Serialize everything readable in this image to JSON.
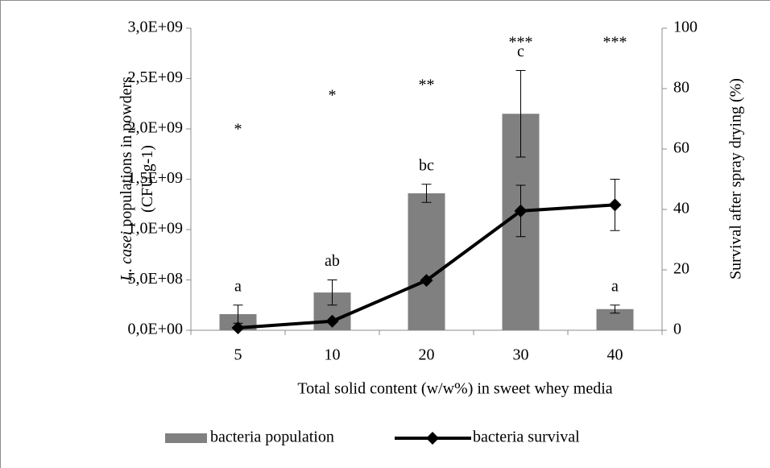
{
  "chart_data": {
    "type": "bar_line",
    "xlabel": "Total solid content (w/w%) in sweet whey media",
    "ylabel": [
      [
        "L. casei",
        " populations in powders"
      ],
      [
        "(CFU g-1)"
      ]
    ],
    "y2label": "Survival after spray drying (%)",
    "categories": [
      "5",
      "10",
      "20",
      "30",
      "40"
    ],
    "series": [
      {
        "name": "bacteria population",
        "color": "#808080",
        "kind": "bar",
        "axis": "y",
        "values": [
          160000000,
          375000000,
          1360000000,
          2150000000,
          210000000
        ],
        "errors": [
          90000000,
          125000000,
          90000000,
          430000000,
          40000000
        ]
      },
      {
        "name": "bacteria survival",
        "color": "#000000",
        "kind": "line",
        "axis": "y2",
        "values": [
          0.8,
          3,
          16.5,
          39.5,
          41.5
        ],
        "errors": [
          null,
          null,
          null,
          8.5,
          8.5
        ]
      }
    ],
    "bar_letters": [
      "a",
      "ab",
      "bc",
      "c",
      "a"
    ],
    "significance": [
      "*",
      "*",
      "**",
      "***",
      "***"
    ],
    "ylim": [
      0,
      3000000000
    ],
    "yticks": [
      {
        "value": 0,
        "label": "0,0E+00"
      },
      {
        "value": 500000000,
        "label": "5,0E+08"
      },
      {
        "value": 1000000000,
        "label": "1,0E+09"
      },
      {
        "value": 1500000000,
        "label": "1,5E+09"
      },
      {
        "value": 2000000000,
        "label": "2,0E+09"
      },
      {
        "value": 2500000000,
        "label": "2,5E+09"
      },
      {
        "value": 3000000000,
        "label": "3,0E+09"
      }
    ],
    "y2lim": [
      0,
      100
    ],
    "y2ticks": [
      0,
      20,
      40,
      60,
      80,
      100
    ],
    "legend": "bottom"
  }
}
